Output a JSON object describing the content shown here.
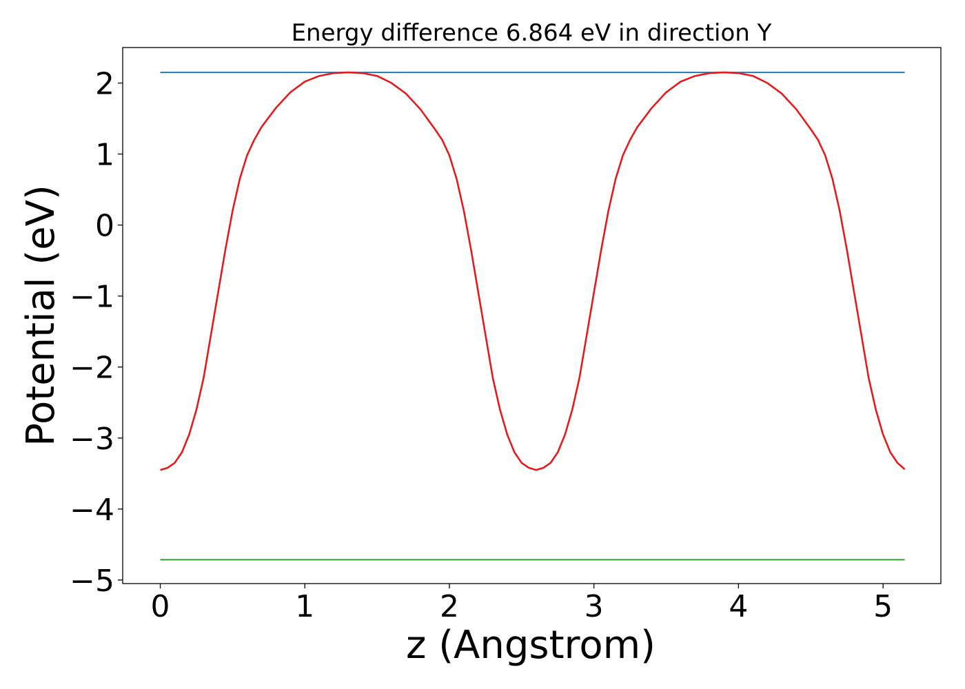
{
  "chart_data": {
    "type": "line",
    "title": "Energy difference 6.864 eV in direction Y",
    "xlabel": "z (Angstrom)",
    "ylabel": "Potential (eV)",
    "xlim": [
      -0.26,
      5.4
    ],
    "ylim": [
      -5.05,
      2.5
    ],
    "xticks": [
      0,
      1,
      2,
      3,
      4,
      5
    ],
    "xtick_labels": [
      "0",
      "1",
      "2",
      "3",
      "4",
      "5"
    ],
    "yticks": [
      2,
      1,
      0,
      -1,
      -2,
      -3,
      -4,
      -5
    ],
    "ytick_labels": [
      "2",
      "1",
      "0",
      "−1",
      "−2",
      "−3",
      "−4",
      "−5"
    ],
    "grid": false,
    "legend": "none",
    "series": [
      {
        "color": "#1f77b4",
        "style": "hline",
        "x": [
          0,
          5.15
        ],
        "y": [
          2.15,
          2.15
        ]
      },
      {
        "color": "#2ca02c",
        "style": "hline",
        "x": [
          0,
          5.15
        ],
        "y": [
          -4.714,
          -4.714
        ]
      },
      {
        "color": "#e41a1c",
        "style": "curve",
        "x": [
          0.0,
          0.05,
          0.1,
          0.15,
          0.2,
          0.25,
          0.3,
          0.35,
          0.4,
          0.45,
          0.5,
          0.55,
          0.6,
          0.65,
          0.7,
          0.8,
          0.9,
          1.0,
          1.1,
          1.2,
          1.3,
          1.4,
          1.5,
          1.6,
          1.7,
          1.8,
          1.9,
          1.95,
          2.0,
          2.05,
          2.1,
          2.15,
          2.2,
          2.25,
          2.3,
          2.35,
          2.4,
          2.45,
          2.5,
          2.55,
          2.6,
          2.65,
          2.7,
          2.75,
          2.8,
          2.85,
          2.9,
          2.95,
          3.0,
          3.05,
          3.1,
          3.15,
          3.2,
          3.25,
          3.3,
          3.4,
          3.5,
          3.6,
          3.7,
          3.8,
          3.9,
          4.0,
          4.1,
          4.2,
          4.3,
          4.4,
          4.5,
          4.55,
          4.6,
          4.65,
          4.7,
          4.75,
          4.8,
          4.85,
          4.9,
          4.95,
          5.0,
          5.05,
          5.1,
          5.15
        ],
        "y": [
          -3.45,
          -3.42,
          -3.35,
          -3.2,
          -2.95,
          -2.6,
          -2.15,
          -1.55,
          -0.95,
          -0.35,
          0.2,
          0.65,
          0.98,
          1.2,
          1.38,
          1.65,
          1.87,
          2.02,
          2.1,
          2.14,
          2.15,
          2.14,
          2.1,
          2.0,
          1.85,
          1.63,
          1.35,
          1.2,
          0.98,
          0.65,
          0.2,
          -0.35,
          -0.95,
          -1.55,
          -2.15,
          -2.6,
          -2.95,
          -3.2,
          -3.35,
          -3.42,
          -3.45,
          -3.42,
          -3.35,
          -3.2,
          -2.95,
          -2.6,
          -2.15,
          -1.55,
          -0.95,
          -0.35,
          0.2,
          0.65,
          0.98,
          1.2,
          1.38,
          1.65,
          1.87,
          2.02,
          2.1,
          2.14,
          2.15,
          2.14,
          2.1,
          2.0,
          1.85,
          1.63,
          1.35,
          1.2,
          0.98,
          0.65,
          0.2,
          -0.35,
          -0.95,
          -1.55,
          -2.15,
          -2.6,
          -2.95,
          -3.2,
          -3.35,
          -3.44
        ]
      }
    ]
  }
}
